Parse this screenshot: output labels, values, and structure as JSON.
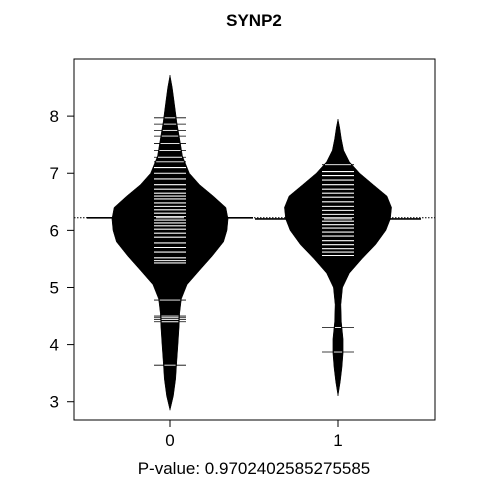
{
  "chart_data": {
    "type": "beanplot",
    "title": "SYNP2",
    "xlabel": "P-value: 0.9702402585275585",
    "ylabel": "",
    "categories": [
      "0",
      "1"
    ],
    "ylim": [
      2.68,
      9.0
    ],
    "y_ticks": [
      "3",
      "4",
      "5",
      "6",
      "7",
      "8"
    ],
    "overall_line": 6.22,
    "legend": "none",
    "grid": false,
    "series": [
      {
        "category": "0",
        "median_line": 6.22,
        "density": [
          [
            2.85,
            0.0
          ],
          [
            3.1,
            0.06
          ],
          [
            3.4,
            0.1
          ],
          [
            3.7,
            0.12
          ],
          [
            4.0,
            0.14
          ],
          [
            4.3,
            0.16
          ],
          [
            4.55,
            0.17
          ],
          [
            4.8,
            0.2
          ],
          [
            5.05,
            0.3
          ],
          [
            5.3,
            0.52
          ],
          [
            5.55,
            0.74
          ],
          [
            5.8,
            0.94
          ],
          [
            6.0,
            1.0
          ],
          [
            6.2,
            1.02
          ],
          [
            6.4,
            0.98
          ],
          [
            6.6,
            0.76
          ],
          [
            6.8,
            0.52
          ],
          [
            7.0,
            0.34
          ],
          [
            7.3,
            0.22
          ],
          [
            7.6,
            0.17
          ],
          [
            7.9,
            0.12
          ],
          [
            8.2,
            0.08
          ],
          [
            8.5,
            0.04
          ],
          [
            8.72,
            0.0
          ]
        ],
        "points": [
          3.64,
          4.4,
          4.44,
          4.47,
          4.5,
          4.78,
          5.43,
          5.47,
          5.52,
          5.62,
          5.7,
          5.78,
          5.88,
          5.95,
          6.02,
          6.08,
          6.13,
          6.18,
          6.24,
          6.3,
          6.36,
          6.42,
          6.48,
          6.55,
          6.6,
          6.65,
          6.72,
          6.8,
          6.9,
          7.0,
          7.1,
          7.2,
          7.28,
          7.4,
          7.52,
          7.65,
          7.75,
          7.86,
          7.97
        ]
      },
      {
        "category": "1",
        "median_line": 6.2,
        "density": [
          [
            3.1,
            0.0
          ],
          [
            3.35,
            0.04
          ],
          [
            3.6,
            0.07
          ],
          [
            3.85,
            0.09
          ],
          [
            4.1,
            0.09
          ],
          [
            4.4,
            0.06
          ],
          [
            4.7,
            0.05
          ],
          [
            5.0,
            0.08
          ],
          [
            5.25,
            0.2
          ],
          [
            5.5,
            0.42
          ],
          [
            5.75,
            0.66
          ],
          [
            6.0,
            0.84
          ],
          [
            6.2,
            0.92
          ],
          [
            6.4,
            0.94
          ],
          [
            6.6,
            0.86
          ],
          [
            6.8,
            0.62
          ],
          [
            7.0,
            0.38
          ],
          [
            7.2,
            0.2
          ],
          [
            7.4,
            0.1
          ],
          [
            7.6,
            0.06
          ],
          [
            7.8,
            0.03
          ],
          [
            7.95,
            0.0
          ]
        ],
        "points": [
          3.87,
          4.3,
          5.56,
          5.62,
          5.68,
          5.75,
          5.82,
          5.9,
          5.97,
          6.04,
          6.1,
          6.16,
          6.22,
          6.28,
          6.35,
          6.42,
          6.5,
          6.58,
          6.65,
          6.72,
          6.8,
          6.88,
          6.96,
          7.03,
          7.15
        ]
      }
    ]
  }
}
